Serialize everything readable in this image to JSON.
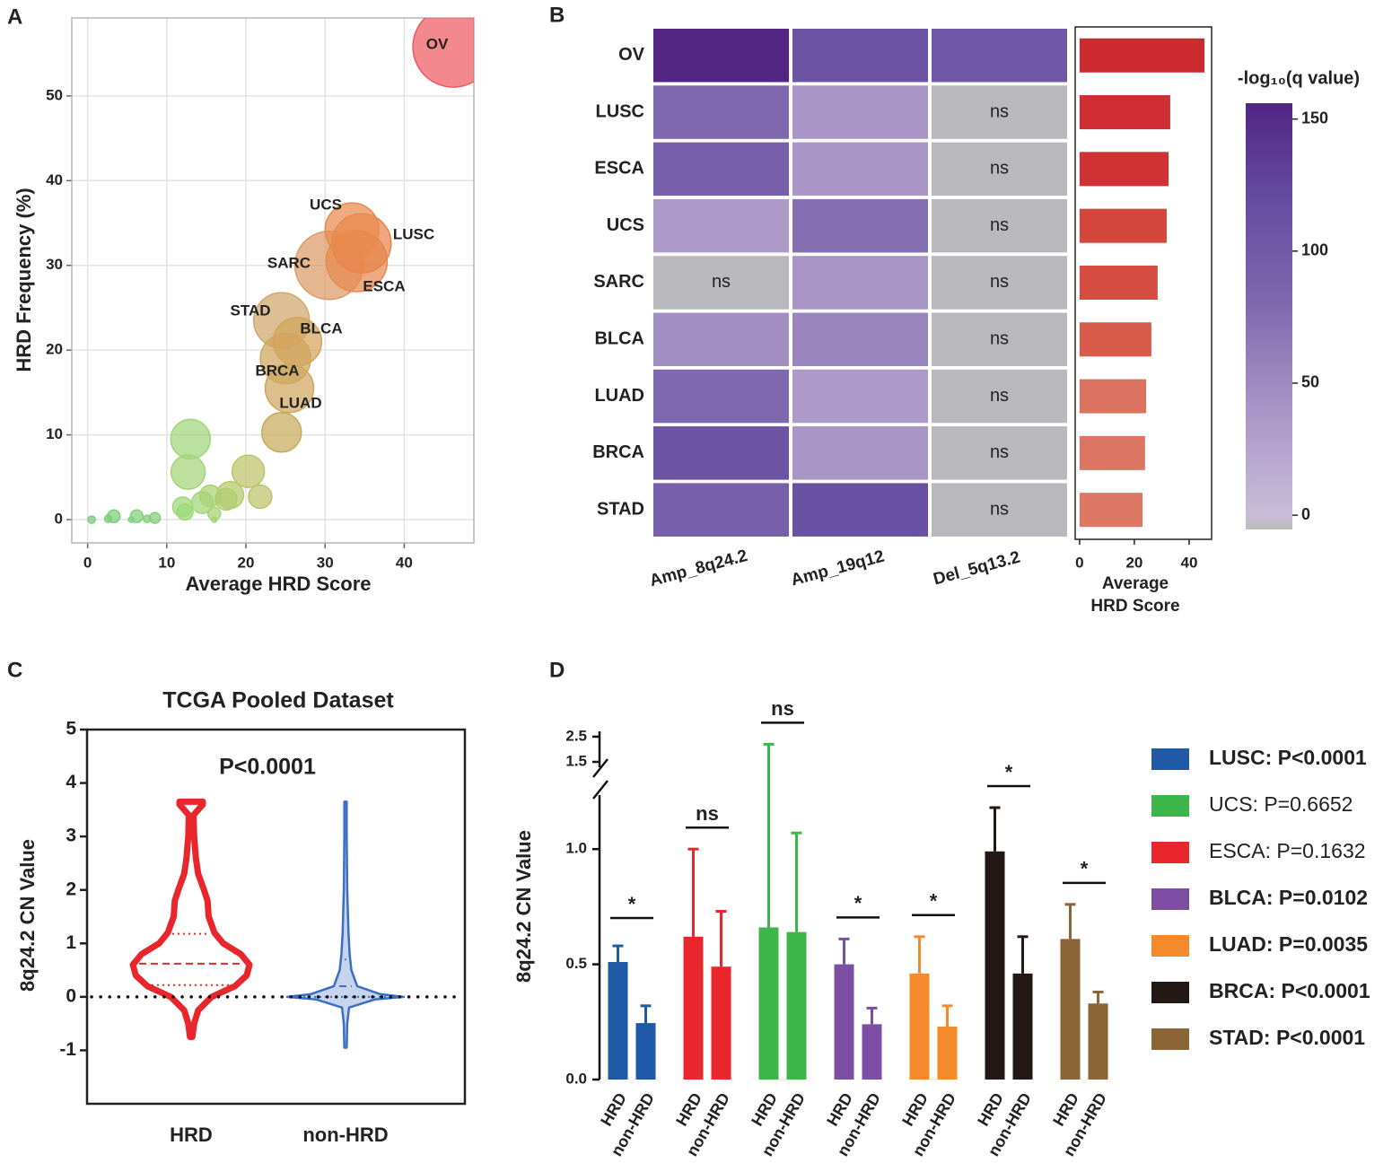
{
  "chart_data": [
    {
      "type": "bubble",
      "panel": "A",
      "xlabel": "Average HRD Score",
      "ylabel": "HRD Frequency (%)",
      "xlim": [
        -2,
        48.8
      ],
      "ylim": [
        -2.75,
        59.2
      ],
      "xticks": [
        0,
        10,
        20,
        30,
        40
      ],
      "yticks": [
        0,
        10,
        20,
        30,
        40,
        50
      ],
      "grid": true,
      "labels": [
        "OV",
        "SARC",
        "ESCA",
        "LUSC",
        "UCS",
        "STAD",
        "BRCA",
        "BLCA",
        "LUAD",
        null,
        null,
        null,
        null,
        null,
        null,
        null,
        null,
        null,
        null,
        null,
        null,
        null,
        null,
        null,
        null,
        null,
        null,
        null,
        null
      ],
      "x": [
        46.2,
        30.5,
        34.0,
        34.6,
        33.4,
        24.5,
        25.0,
        26.5,
        25.5,
        24.5,
        13.0,
        12.7,
        20.3,
        18.0,
        21.8,
        15.5,
        17.5,
        14.5,
        12.0,
        12.3,
        3.3,
        6.2,
        8.5,
        16.0,
        7.5,
        2.6,
        0.5,
        5.5,
        16.0
      ],
      "y": [
        55.8,
        30.0,
        30.5,
        32.6,
        34.2,
        23.5,
        19.0,
        21.0,
        15.5,
        10.3,
        9.5,
        5.6,
        5.7,
        2.9,
        2.7,
        2.8,
        2.4,
        2.0,
        1.5,
        0.9,
        0.4,
        0.4,
        0.2,
        0.7,
        0.1,
        0.1,
        0.0,
        0.0,
        0.0
      ],
      "sizes": [
        45,
        38,
        34,
        33,
        30,
        31,
        28,
        27,
        27,
        22,
        22,
        19,
        18,
        15,
        13,
        12,
        12,
        12,
        11,
        9,
        7,
        7,
        6,
        7,
        4,
        4,
        4,
        3,
        3
      ],
      "colors": [
        "#ee5a62",
        "#dc9a66",
        "#e6894f",
        "#e8844a",
        "#e88a4d",
        "#cfa86a",
        "#cfa560",
        "#d4a35c",
        "#cfa65e",
        "#c7ab5c",
        "#9fd67a",
        "#a5d47a",
        "#bcc468",
        "#b5c96b",
        "#bcc368",
        "#a9d173",
        "#b1cd6f",
        "#a4d476",
        "#9cd879",
        "#9cd879",
        "#7fce7d",
        "#83cf7c",
        "#86cf7a",
        "#a5d374",
        "#84cf7b",
        "#7ccd7e",
        "#7acb7f",
        "#80ce7c",
        "#a5d374"
      ]
    },
    {
      "type": "heatmap",
      "panel": "B",
      "rows": [
        "OV",
        "LUSC",
        "ESCA",
        "UCS",
        "SARC",
        "BLCA",
        "LUAD",
        "BRCA",
        "STAD"
      ],
      "columns": [
        "Amp_8q24.2",
        "Amp_19q12",
        "Del_5q13.2"
      ],
      "values": [
        [
          155,
          110,
          105
        ],
        [
          80,
          40,
          null
        ],
        [
          95,
          40,
          null
        ],
        [
          35,
          75,
          null
        ],
        [
          null,
          40,
          null
        ],
        [
          45,
          55,
          null
        ],
        [
          80,
          35,
          null
        ],
        [
          110,
          40,
          null
        ],
        [
          95,
          115,
          null
        ]
      ],
      "value_labels": [
        [
          null,
          null,
          null
        ],
        [
          null,
          null,
          "ns"
        ],
        [
          null,
          null,
          "ns"
        ],
        [
          null,
          null,
          "ns"
        ],
        [
          "ns",
          null,
          "ns"
        ],
        [
          null,
          null,
          "ns"
        ],
        [
          null,
          null,
          "ns"
        ],
        [
          null,
          null,
          "ns"
        ],
        [
          null,
          null,
          "ns"
        ]
      ],
      "missing_color": "#b9b9bd",
      "colorbar_title": "-log₁₀(q value)",
      "zlim": [
        -5.4,
        156
      ],
      "zticks": [
        0,
        50,
        100,
        150
      ],
      "colorscale": [
        [
          -5.4,
          "#bcbcbc"
        ],
        [
          0,
          "#c8bcd8"
        ],
        [
          40,
          "#a995c6"
        ],
        [
          80,
          "#8068ae"
        ],
        [
          120,
          "#654ca0"
        ],
        [
          156,
          "#522584"
        ]
      ],
      "bar": {
        "xlabel": [
          "Average",
          "HRD Score"
        ],
        "values": [
          45.6,
          33.1,
          32.5,
          31.8,
          28.5,
          26.2,
          24.3,
          23.9,
          23.0
        ],
        "colors": [
          "#cc2a2f",
          "#cf2e32",
          "#d03133",
          "#d4453c",
          "#d64c40",
          "#d85a48",
          "#dc7260",
          "#dc7562",
          "#dd7864"
        ],
        "xlim": [
          -1.6,
          48.2
        ],
        "xticks": [
          0,
          20,
          40
        ]
      }
    },
    {
      "type": "violin",
      "panel": "C",
      "title": "TCGA Pooled Dataset",
      "annotation": "P<0.0001",
      "ylabel": "8q24.2 CN Value",
      "categories": [
        "HRD",
        "non-HRD"
      ],
      "ylim": [
        -2,
        5
      ],
      "yticks": [
        -1,
        0,
        1,
        2,
        3,
        4,
        5
      ],
      "hline": 0,
      "series": [
        {
          "color": "#e8262b",
          "median": 0.62,
          "quartiles": [
            0.22,
            1.18
          ],
          "density_y": [
            -0.75,
            -0.5,
            -0.25,
            0,
            0.2,
            0.4,
            0.6,
            0.8,
            1.0,
            1.2,
            1.5,
            1.8,
            2.0,
            2.3,
            2.6,
            3.0,
            3.4,
            3.6,
            3.65
          ],
          "density": [
            0.02,
            0.05,
            0.12,
            0.35,
            0.75,
            0.95,
            1.0,
            0.85,
            0.55,
            0.4,
            0.3,
            0.28,
            0.22,
            0.12,
            0.08,
            0.05,
            0.04,
            0.2,
            0.2
          ]
        },
        {
          "color": "#3a6fc4",
          "median": 0.2,
          "quartiles": [
            0.0,
            0.7
          ],
          "density_y": [
            -0.95,
            -0.5,
            -0.2,
            -0.05,
            0,
            0.05,
            0.2,
            0.5,
            0.8,
            1.2,
            2.0,
            3.0,
            3.65
          ],
          "density": [
            0.02,
            0.03,
            0.06,
            0.5,
            1.0,
            0.6,
            0.2,
            0.1,
            0.07,
            0.05,
            0.03,
            0.02,
            0.02
          ]
        }
      ]
    },
    {
      "type": "bar_error",
      "panel": "D",
      "ylabel": "8q24.2 CN Value",
      "subcategories": [
        "HRD",
        "non-HRD"
      ],
      "subcategory_colors": [
        "#e8262b",
        "#2b5fb4"
      ],
      "ylim": [
        0,
        1.25
      ],
      "yticks": [
        {
          "value": 0,
          "label": "0.0"
        },
        0.5,
        {
          "value": 1,
          "label": "1.0"
        }
      ],
      "ylim_upper": [
        1.5,
        2.71
      ],
      "yticks_upper": [
        1.5,
        2.5
      ],
      "series": [
        {
          "name": "LUSC: P<0.0001",
          "color": "#1f5aa6",
          "bold": true,
          "values": [
            0.51,
            0.245
          ],
          "errors": [
            0.07,
            0.075
          ],
          "annotation": "*"
        },
        {
          "name": "ESCA: P=0.1632",
          "color": "#e8262b",
          "bold": false,
          "values": [
            0.62,
            0.49
          ],
          "errors": [
            0.38,
            0.24
          ],
          "annotation": "ns"
        },
        {
          "name": "UCS: P=0.6652",
          "color": "#3cb54a",
          "bold": false,
          "values": [
            0.66,
            0.64
          ],
          "errors": [
            1.54,
            0.43
          ],
          "annotation": "ns"
        },
        {
          "name": "BLCA: P=0.0102",
          "color": "#7b4ea3",
          "bold": true,
          "values": [
            0.5,
            0.24
          ],
          "errors": [
            0.11,
            0.07
          ],
          "annotation": "*"
        },
        {
          "name": "LUAD: P=0.0035",
          "color": "#f58a2c",
          "bold": true,
          "values": [
            0.46,
            0.23
          ],
          "errors": [
            0.16,
            0.09
          ],
          "annotation": "*"
        },
        {
          "name": "BRCA: P<0.0001",
          "color": "#231815",
          "bold": true,
          "values": [
            0.99,
            0.46
          ],
          "errors": [
            0.19,
            0.16
          ],
          "annotation": "*"
        },
        {
          "name": "STAD: P<0.0001",
          "color": "#8b6535",
          "bold": true,
          "values": [
            0.61,
            0.33
          ],
          "errors": [
            0.15,
            0.05
          ],
          "annotation": "*"
        }
      ],
      "legend_order": [
        0,
        2,
        1,
        3,
        4,
        5,
        6
      ]
    }
  ]
}
